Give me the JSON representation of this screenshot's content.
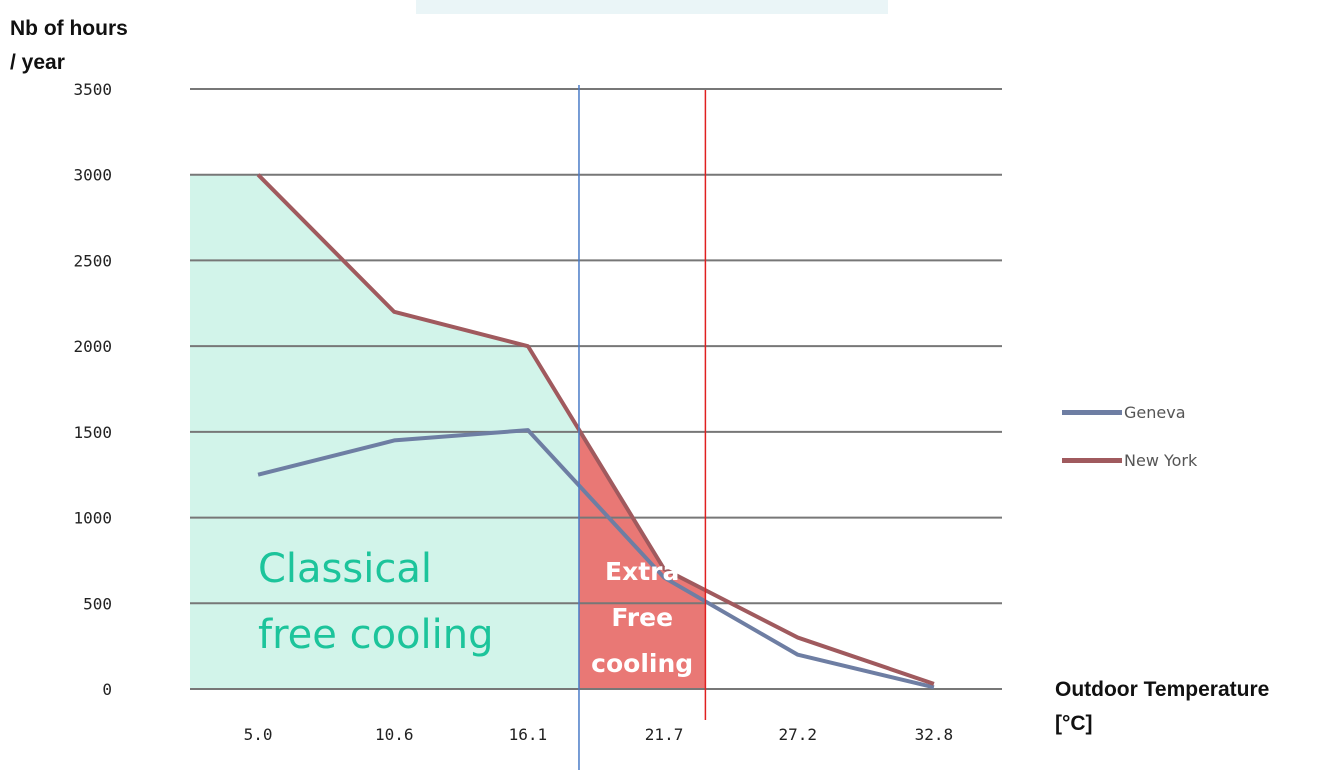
{
  "colors": {
    "geneva": "#6e7ea3",
    "new_york": "#a05a5e",
    "classical_fill": "#d2f4ea",
    "extra_fill": "#e8716e",
    "blue_marker": "#4a7cc8",
    "red_marker": "#e02020",
    "gridline": "#777777",
    "classical_text": "#1cc49b"
  },
  "annotations": {
    "classical": [
      "Classical",
      "free cooling"
    ],
    "extra": [
      "Extra",
      "Free",
      "cooling"
    ]
  },
  "chart_data": {
    "type": "line",
    "ylabel": "Nb of  hours / year",
    "xlabel": "Outdoor Temperature [°C]",
    "categories": [
      "5.0",
      "10.6",
      "16.1",
      "21.7",
      "27.2",
      "32.8"
    ],
    "x_values": [
      5.0,
      10.6,
      16.1,
      21.7,
      27.2,
      32.8
    ],
    "y_ticks": [
      0,
      500,
      1000,
      1500,
      2000,
      2500,
      3000,
      3500
    ],
    "ylim": [
      0,
      3500
    ],
    "xlim": [
      2.2,
      35.6
    ],
    "grid": true,
    "legend_position": "right",
    "series": [
      {
        "name": "Geneva",
        "points": [
          [
            5.0,
            1250
          ],
          [
            10.6,
            1450
          ],
          [
            16.1,
            1510
          ],
          [
            21.7,
            650
          ],
          [
            27.2,
            200
          ],
          [
            32.8,
            10
          ]
        ]
      },
      {
        "name": "New York",
        "points": [
          [
            5.0,
            3000
          ],
          [
            10.6,
            2200
          ],
          [
            16.1,
            2000
          ],
          [
            21.7,
            700
          ],
          [
            27.2,
            300
          ],
          [
            32.8,
            30
          ]
        ]
      }
    ],
    "vertical_markers": [
      {
        "x": 18.2,
        "color_key": "blue_marker"
      },
      {
        "x": 23.4,
        "color_key": "red_marker"
      }
    ],
    "regions": [
      {
        "label_key": "classical",
        "x_from": 2.2,
        "x_to": 18.2
      },
      {
        "label_key": "extra",
        "x_from": 18.2,
        "x_to": 23.4
      }
    ]
  }
}
